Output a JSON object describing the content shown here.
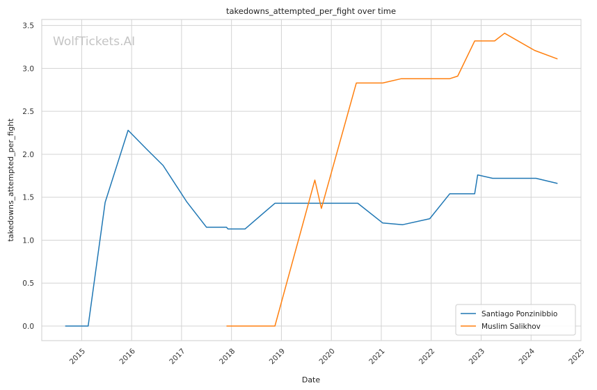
{
  "chart_data": {
    "type": "line",
    "title": "takedowns_attempted_per_fight over time",
    "xlabel": "Date",
    "ylabel": "takedowns_attempted_per_fight",
    "watermark": "WolfTickets.AI",
    "xlim": [
      2014.2,
      2025.0
    ],
    "ylim": [
      -0.17,
      3.57
    ],
    "x_ticks": [
      2015,
      2016,
      2017,
      2018,
      2019,
      2020,
      2021,
      2022,
      2023,
      2024,
      2025
    ],
    "x_tick_labels": [
      "2015",
      "2016",
      "2017",
      "2018",
      "2019",
      "2020",
      "2021",
      "2022",
      "2023",
      "2024",
      "2025"
    ],
    "y_ticks": [
      0.0,
      0.5,
      1.0,
      1.5,
      2.0,
      2.5,
      3.0,
      3.5
    ],
    "y_tick_labels": [
      "0.0",
      "0.5",
      "1.0",
      "1.5",
      "2.0",
      "2.5",
      "3.0",
      "3.5"
    ],
    "grid": true,
    "legend_position": "bottom-right",
    "series": [
      {
        "name": "Santiago Ponzinibbio",
        "color": "#1f77b4",
        "x": [
          2014.67,
          2015.13,
          2015.47,
          2015.93,
          2016.3,
          2016.63,
          2017.1,
          2017.5,
          2017.9,
          2017.93,
          2018.27,
          2018.87,
          2019.4,
          2019.73,
          2020.53,
          2021.03,
          2021.43,
          2021.97,
          2022.37,
          2022.87,
          2022.93,
          2023.23,
          2024.1,
          2024.53
        ],
        "y": [
          0.0,
          0.0,
          1.44,
          2.28,
          2.06,
          1.87,
          1.45,
          1.15,
          1.15,
          1.13,
          1.13,
          1.43,
          1.43,
          1.43,
          1.43,
          1.2,
          1.18,
          1.25,
          1.54,
          1.54,
          1.76,
          1.72,
          1.72,
          1.66
        ]
      },
      {
        "name": "Muslim Salikhov",
        "color": "#ff7f0e",
        "x": [
          2017.9,
          2018.87,
          2019.67,
          2019.8,
          2020.5,
          2021.03,
          2021.4,
          2022.37,
          2022.53,
          2022.87,
          2023.27,
          2023.47,
          2024.07,
          2024.53
        ],
        "y": [
          0.0,
          0.0,
          1.7,
          1.37,
          2.83,
          2.83,
          2.88,
          2.88,
          2.91,
          3.32,
          3.32,
          3.41,
          3.21,
          3.11
        ]
      }
    ]
  }
}
